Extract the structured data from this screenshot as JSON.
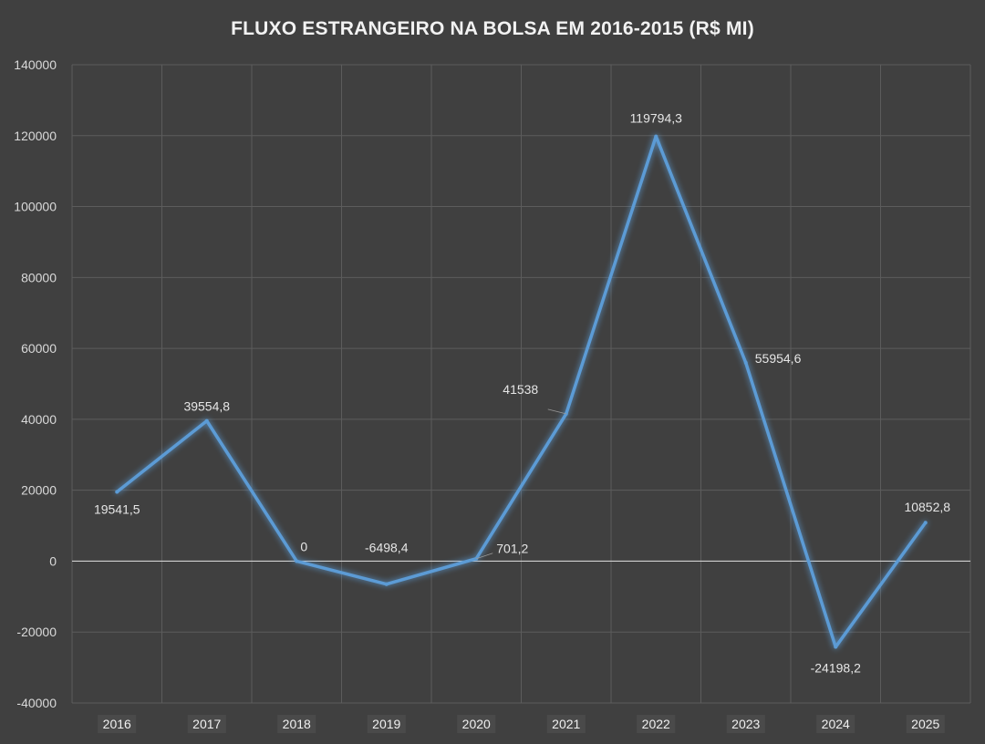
{
  "chart_data": {
    "type": "line",
    "title": "FLUXO ESTRANGEIRO NA BOLSA EM 2016-2015 (R$ MI)",
    "xlabel": "",
    "ylabel": "",
    "categories": [
      "2016",
      "2017",
      "2018",
      "2019",
      "2020",
      "2021",
      "2022",
      "2023",
      "2024",
      "2025"
    ],
    "series": [
      {
        "values": [
          19541.5,
          39554.8,
          0,
          -6498.4,
          701.2,
          41538,
          119794.3,
          55954.6,
          -24198.2,
          10852.8
        ],
        "labels": [
          "19541,5",
          "39554,8",
          "0",
          "-6498,4",
          "701,2",
          "41538",
          "119794,3",
          "55954,6",
          "-24198,2",
          "10852,8"
        ],
        "color": "#5b9bd5"
      }
    ],
    "ylim": [
      -40000,
      140000
    ],
    "yticks": [
      -40000,
      -20000,
      0,
      20000,
      40000,
      60000,
      80000,
      100000,
      120000,
      140000
    ],
    "ytick_labels": [
      "-40000",
      "-20000",
      "0",
      "20000",
      "40000",
      "60000",
      "80000",
      "100000",
      "120000",
      "140000"
    ],
    "grid": true,
    "legend": "none"
  },
  "colors": {
    "background": "#404040",
    "grid": "#5c5c5c",
    "zero_line": "#d0d0d0",
    "line": "#5b9bd5",
    "text": "#d9d9d9"
  }
}
